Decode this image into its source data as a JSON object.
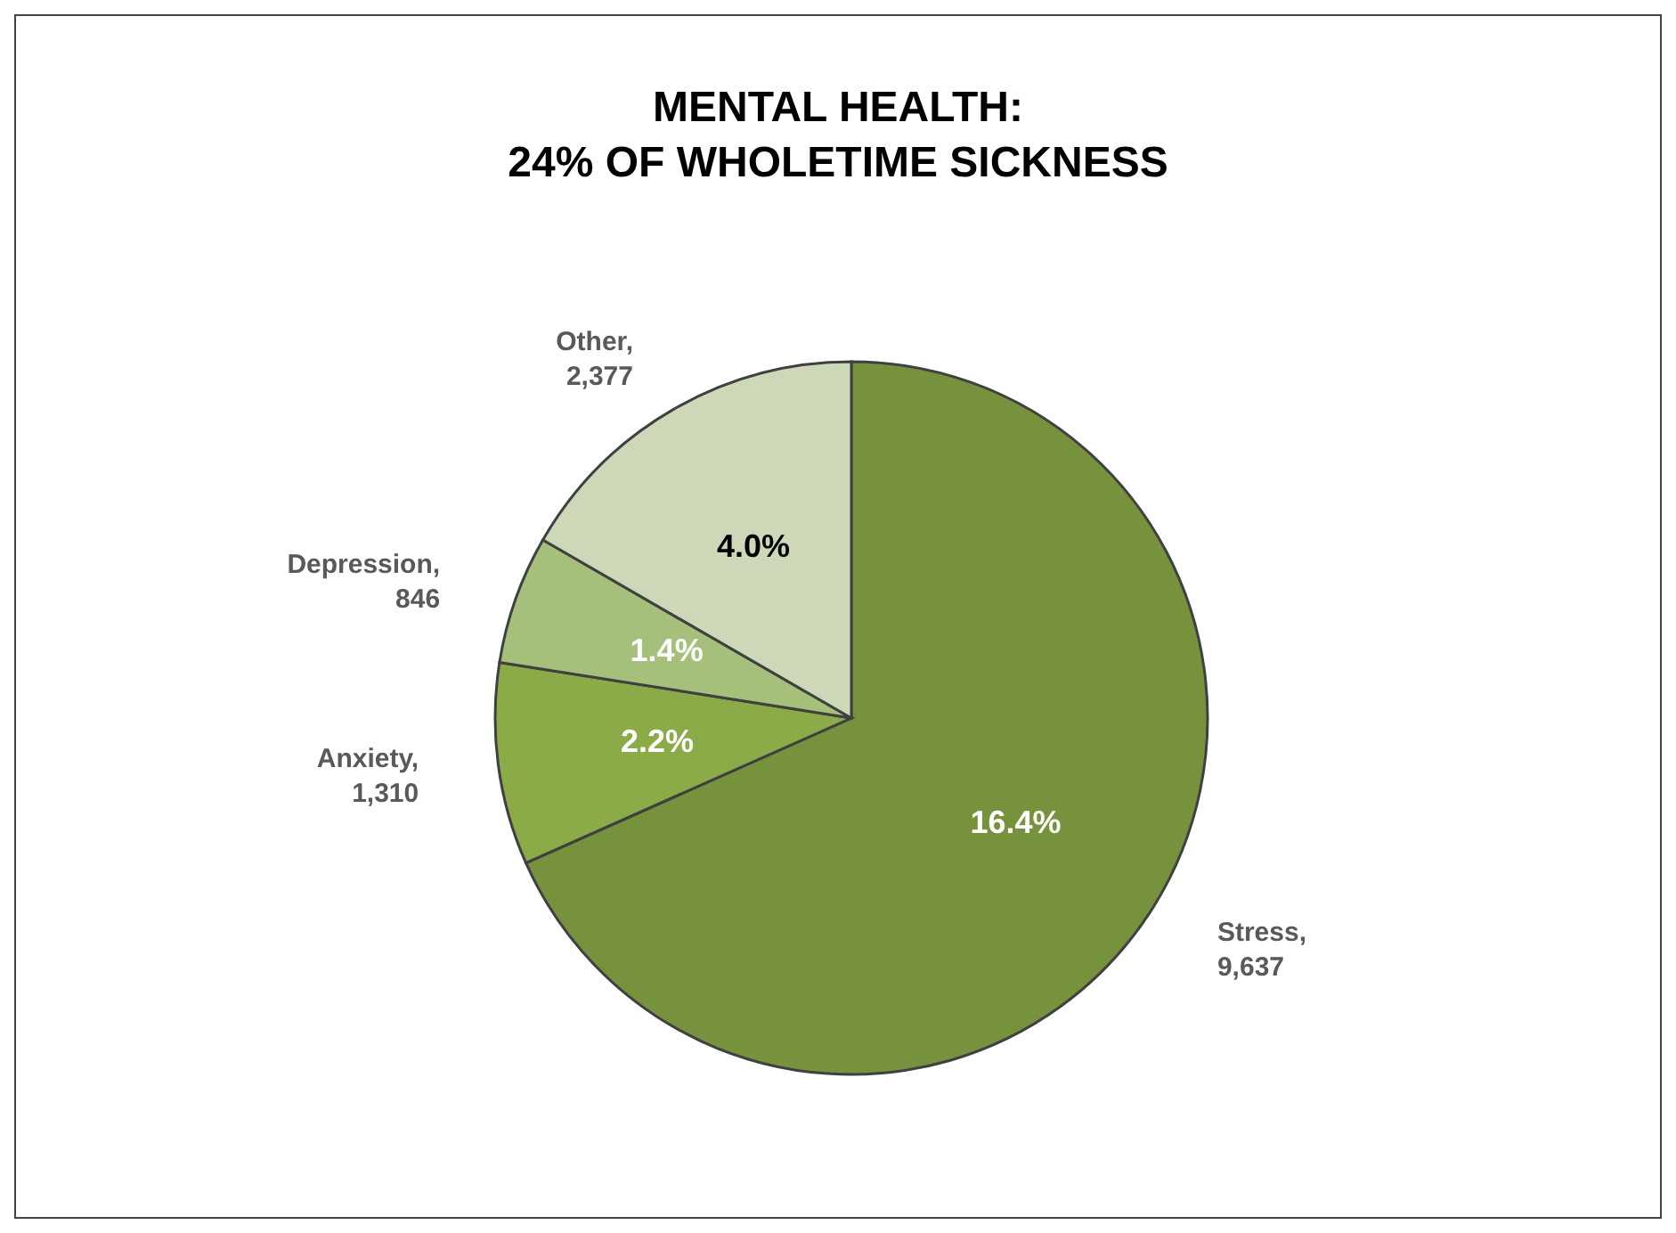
{
  "chart_data": {
    "type": "pie",
    "title": "MENTAL HEALTH:\n24% OF WHOLETIME SICKNESS",
    "categories": [
      "Stress, 9,637",
      "Anxiety, 1,310",
      "Depression, 846",
      "Other, 2,377"
    ],
    "values": [
      16.4,
      2.2,
      1.4,
      4.0
    ],
    "colors": [
      "#77923c",
      "#8aab48",
      "#a5c07a",
      "#cdd8b8"
    ],
    "value_labels": [
      "16.4%",
      "2.2%",
      "1.4%",
      "4.0%"
    ]
  }
}
